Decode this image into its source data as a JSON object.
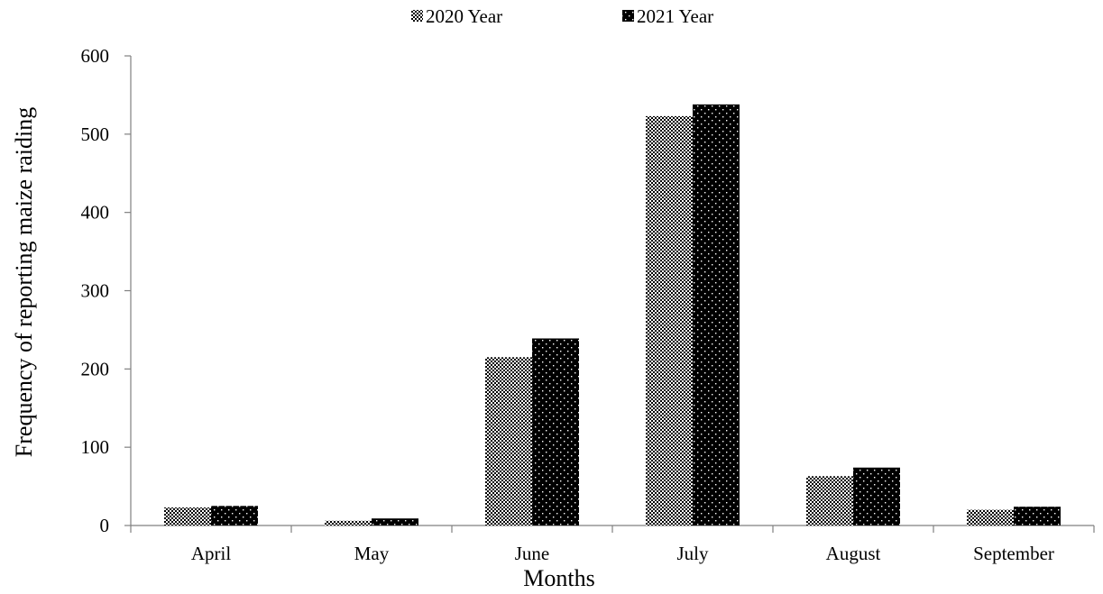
{
  "chart_data": {
    "type": "bar",
    "title": "",
    "xlabel": "Months",
    "ylabel": "Frequency of reporting maize raiding",
    "categories": [
      "April",
      "May",
      "June",
      "July",
      "August",
      "September"
    ],
    "series": [
      {
        "name": "2020 Year",
        "values": [
          23,
          6,
          215,
          523,
          63,
          20
        ],
        "pattern": "checker"
      },
      {
        "name": "2021 Year",
        "values": [
          25,
          9,
          239,
          538,
          74,
          24
        ],
        "pattern": "dotted"
      }
    ],
    "ylim": [
      0,
      600
    ],
    "yticks": [
      0,
      100,
      200,
      300,
      400,
      500,
      600
    ],
    "grid": false,
    "legend_position": "top-center"
  }
}
